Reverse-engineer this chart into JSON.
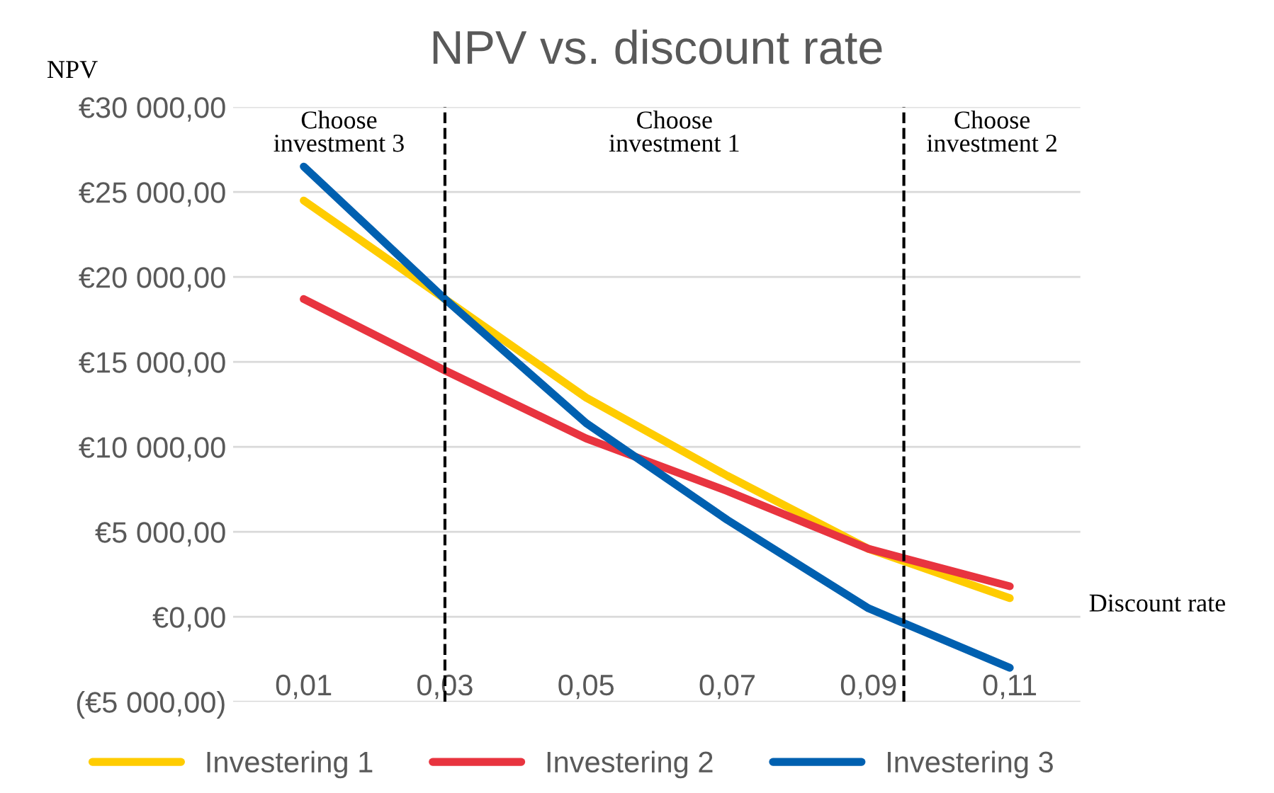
{
  "chart_data": {
    "type": "line",
    "title": "NPV vs. discount rate",
    "xlabel": "Discount rate",
    "ylabel": "NPV",
    "x": [
      0.01,
      0.03,
      0.05,
      0.07,
      0.09,
      0.11
    ],
    "series": [
      {
        "name": "Investering 1",
        "color": "#ffcc00",
        "values": [
          24500,
          18700,
          12900,
          8300,
          4000,
          1100
        ]
      },
      {
        "name": "Investering 2",
        "color": "#e8343f",
        "values": [
          18700,
          14500,
          10500,
          7400,
          4000,
          1800
        ]
      },
      {
        "name": "Investering 3",
        "color": "#0060b0",
        "values": [
          26500,
          18700,
          11400,
          5700,
          500,
          -3000
        ]
      }
    ],
    "xlim": [
      0,
      0.12
    ],
    "xticks": [
      {
        "value": 0.01,
        "label": "0,01"
      },
      {
        "value": 0.03,
        "label": "0,03"
      },
      {
        "value": 0.05,
        "label": "0,05"
      },
      {
        "value": 0.07,
        "label": "0,07"
      },
      {
        "value": 0.09,
        "label": "0,09"
      },
      {
        "value": 0.11,
        "label": "0,11"
      }
    ],
    "ylim": [
      -5000,
      30000
    ],
    "yticks": [
      {
        "value": -5000,
        "label": "(€5 000,00)"
      },
      {
        "value": 0,
        "label": "€0,00"
      },
      {
        "value": 5000,
        "label": "€5 000,00"
      },
      {
        "value": 10000,
        "label": "€10 000,00"
      },
      {
        "value": 15000,
        "label": "€15 000,00"
      },
      {
        "value": 20000,
        "label": "€20 000,00"
      },
      {
        "value": 25000,
        "label": "€25 000,00"
      },
      {
        "value": 30000,
        "label": "€30 000,00"
      }
    ],
    "ref_lines": [
      {
        "axis": "x",
        "value": 0.03,
        "color": "#000000",
        "line_style": "dashed"
      },
      {
        "axis": "x",
        "value": 0.095,
        "color": "#000000",
        "line_style": "dashed"
      }
    ],
    "annotations": [
      "Choose\ninvestment 3",
      "Choose\ninvestment 1",
      "Choose\ninvestment 2"
    ],
    "grid": "y",
    "legend": "bottom",
    "marker": "none",
    "line_style": "solid"
  }
}
